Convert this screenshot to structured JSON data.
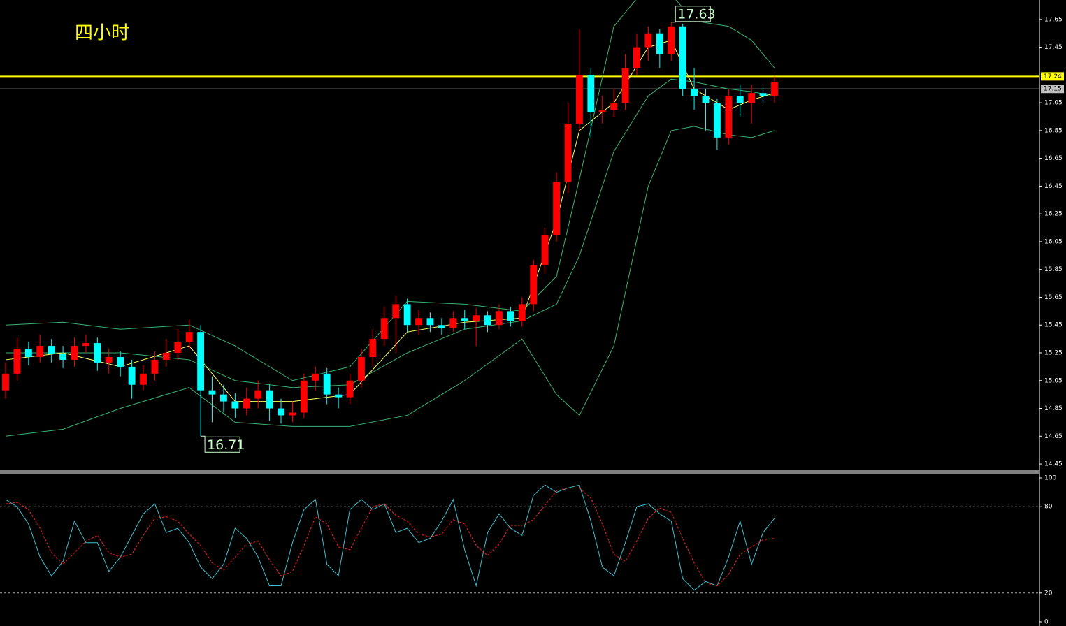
{
  "chart_data": [
    {
      "type": "candlestick",
      "title": "四小时",
      "open": [
        14.98,
        15.1,
        15.28,
        15.22,
        15.3,
        15.24,
        15.2,
        15.3,
        15.32,
        15.18,
        15.22,
        15.15,
        15.02,
        15.1,
        15.2,
        15.25,
        15.33,
        15.4,
        14.98,
        14.95,
        14.9,
        14.85,
        14.92,
        14.98,
        14.85,
        14.8,
        14.82,
        15.05,
        15.1,
        14.95,
        14.93,
        15.05,
        15.22,
        15.35,
        15.5,
        15.6,
        15.45,
        15.5,
        15.45,
        15.43,
        15.5,
        15.48,
        15.52,
        15.45,
        15.55,
        15.48,
        15.6,
        15.88,
        16.1,
        16.48,
        16.9,
        17.25,
        16.98,
        17.0,
        17.05,
        17.3,
        17.45,
        17.55,
        17.4,
        17.6,
        17.15,
        17.1,
        17.05,
        16.8,
        17.1,
        17.05,
        17.12,
        17.1
      ],
      "high": [
        15.18,
        15.36,
        15.33,
        15.38,
        15.35,
        15.3,
        15.36,
        15.38,
        15.36,
        15.28,
        15.26,
        15.2,
        15.16,
        15.26,
        15.35,
        15.42,
        15.49,
        15.45,
        15.08,
        15.02,
        14.96,
        15.0,
        15.05,
        15.02,
        14.92,
        14.9,
        15.1,
        15.15,
        15.14,
        15.0,
        15.1,
        15.28,
        15.42,
        15.58,
        15.66,
        15.64,
        15.56,
        15.54,
        15.5,
        15.55,
        15.56,
        15.57,
        15.55,
        15.6,
        15.58,
        15.65,
        15.92,
        16.15,
        16.55,
        17.05,
        17.58,
        17.3,
        17.1,
        17.15,
        17.4,
        17.55,
        17.6,
        17.58,
        17.63,
        17.62,
        17.3,
        17.15,
        17.08,
        17.15,
        17.18,
        17.18,
        17.16,
        17.24
      ],
      "low": [
        14.92,
        15.05,
        15.16,
        15.18,
        15.18,
        15.14,
        15.15,
        15.25,
        15.12,
        15.1,
        15.08,
        14.92,
        14.98,
        15.05,
        15.15,
        15.2,
        15.28,
        14.65,
        14.75,
        14.82,
        14.78,
        14.8,
        14.85,
        14.76,
        14.74,
        14.75,
        14.78,
        14.98,
        14.88,
        14.85,
        14.88,
        15.0,
        15.15,
        15.3,
        15.25,
        15.4,
        15.38,
        15.4,
        15.38,
        15.4,
        15.42,
        15.3,
        15.4,
        15.42,
        15.44,
        15.44,
        15.55,
        15.82,
        16.05,
        16.4,
        16.85,
        16.8,
        16.9,
        16.95,
        17.0,
        17.25,
        17.35,
        17.3,
        17.35,
        17.1,
        17.0,
        16.85,
        16.71,
        16.75,
        16.95,
        16.9,
        17.05,
        17.05
      ],
      "close": [
        15.1,
        15.28,
        15.22,
        15.3,
        15.24,
        15.2,
        15.3,
        15.32,
        15.18,
        15.22,
        15.15,
        15.02,
        15.1,
        15.2,
        15.25,
        15.33,
        15.4,
        14.98,
        14.95,
        14.9,
        14.85,
        14.92,
        14.98,
        14.85,
        14.8,
        14.82,
        15.05,
        15.1,
        14.95,
        14.93,
        15.05,
        15.22,
        15.35,
        15.5,
        15.6,
        15.45,
        15.5,
        15.45,
        15.43,
        15.5,
        15.48,
        15.52,
        15.45,
        15.55,
        15.48,
        15.6,
        15.88,
        16.1,
        16.48,
        16.9,
        17.25,
        16.98,
        17.0,
        17.05,
        17.3,
        17.45,
        17.55,
        17.4,
        17.6,
        17.15,
        17.1,
        17.05,
        16.8,
        17.1,
        17.05,
        17.12,
        17.1,
        17.2
      ],
      "up_color": "#ff0000",
      "down_color": "#00ffff",
      "lines": [
        {
          "color": "#3cb371",
          "x": [
            0,
            5,
            10,
            16,
            20,
            25,
            30,
            35,
            40,
            45,
            48,
            50,
            53,
            56,
            58,
            60,
            63,
            65,
            67
          ],
          "values": [
            15.45,
            15.47,
            15.42,
            15.45,
            15.3,
            15.05,
            15.15,
            15.62,
            15.6,
            15.55,
            15.8,
            16.5,
            17.6,
            17.9,
            17.83,
            17.64,
            17.6,
            17.5,
            17.3
          ]
        },
        {
          "color": "#3cb371",
          "x": [
            0,
            5,
            10,
            16,
            20,
            25,
            30,
            35,
            40,
            45,
            48,
            50,
            53,
            56,
            58,
            60,
            63,
            65,
            67
          ],
          "values": [
            15.25,
            15.25,
            15.25,
            15.2,
            15.05,
            15.0,
            15.02,
            15.25,
            15.42,
            15.48,
            15.6,
            15.95,
            16.7,
            17.1,
            17.22,
            17.2,
            17.15,
            17.13,
            17.1
          ]
        },
        {
          "color": "#3cb371",
          "x": [
            0,
            5,
            10,
            16,
            20,
            25,
            30,
            35,
            40,
            45,
            48,
            50,
            53,
            56,
            58,
            60,
            63,
            65,
            67
          ],
          "values": [
            14.65,
            14.7,
            14.85,
            15.0,
            14.75,
            14.72,
            14.72,
            14.8,
            15.05,
            15.35,
            14.95,
            14.8,
            15.3,
            16.45,
            16.85,
            16.88,
            16.82,
            16.8,
            16.85
          ]
        },
        {
          "color": "#ffff66",
          "x": [
            0,
            5,
            10,
            16,
            20,
            25,
            30,
            35,
            40,
            45,
            48,
            50,
            53,
            56,
            58,
            60,
            63,
            65,
            67
          ],
          "values": [
            15.2,
            15.25,
            15.15,
            15.3,
            14.9,
            14.9,
            14.95,
            15.4,
            15.47,
            15.5,
            16.2,
            16.85,
            17.05,
            17.45,
            17.5,
            17.15,
            17.0,
            17.07,
            17.12
          ]
        }
      ],
      "hlines": [
        {
          "value": 17.24,
          "color": "#ffff00"
        },
        {
          "value": 17.15,
          "color": "#c0c0c0"
        }
      ],
      "annotations": [
        "17.63",
        "16.71"
      ],
      "ylim": [
        14.41,
        17.79
      ],
      "yticks": [
        14.45,
        14.65,
        14.85,
        15.05,
        15.25,
        15.45,
        15.65,
        15.85,
        16.05,
        16.25,
        16.45,
        16.65,
        16.85,
        17.05,
        17.25,
        17.45,
        17.65
      ]
    },
    {
      "type": "line",
      "series": [
        {
          "color": "#40c0d0",
          "values": [
            85,
            80,
            68,
            45,
            32,
            42,
            70,
            55,
            55,
            35,
            45,
            60,
            75,
            82,
            62,
            65,
            55,
            38,
            30,
            40,
            65,
            58,
            45,
            25,
            25,
            55,
            78,
            85,
            40,
            32,
            78,
            85,
            78,
            82,
            62,
            65,
            55,
            58,
            70,
            85,
            50,
            25,
            62,
            75,
            65,
            60,
            88,
            95,
            90,
            93,
            95,
            70,
            38,
            32,
            55,
            80,
            82,
            75,
            70,
            30,
            22,
            28,
            25,
            45,
            70,
            40,
            62,
            72
          ]
        },
        {
          "color": "#ff2020",
          "dashed": true,
          "values": [
            82,
            83,
            78,
            65,
            48,
            40,
            48,
            56,
            60,
            48,
            45,
            47,
            60,
            72,
            73,
            70,
            61,
            53,
            41,
            36,
            45,
            54,
            56,
            43,
            32,
            35,
            53,
            73,
            68,
            52,
            50,
            65,
            80,
            82,
            74,
            70,
            61,
            59,
            61,
            71,
            68,
            53,
            46,
            54,
            67,
            67,
            71,
            81,
            91,
            93,
            93,
            86,
            68,
            47,
            42,
            56,
            72,
            79,
            76,
            58,
            41,
            27,
            25,
            33,
            47,
            52,
            57,
            58
          ]
        }
      ],
      "ylim": [
        0,
        100
      ],
      "yticks": [
        0,
        20,
        80,
        100
      ],
      "grid_values": [
        20,
        80
      ]
    }
  ]
}
